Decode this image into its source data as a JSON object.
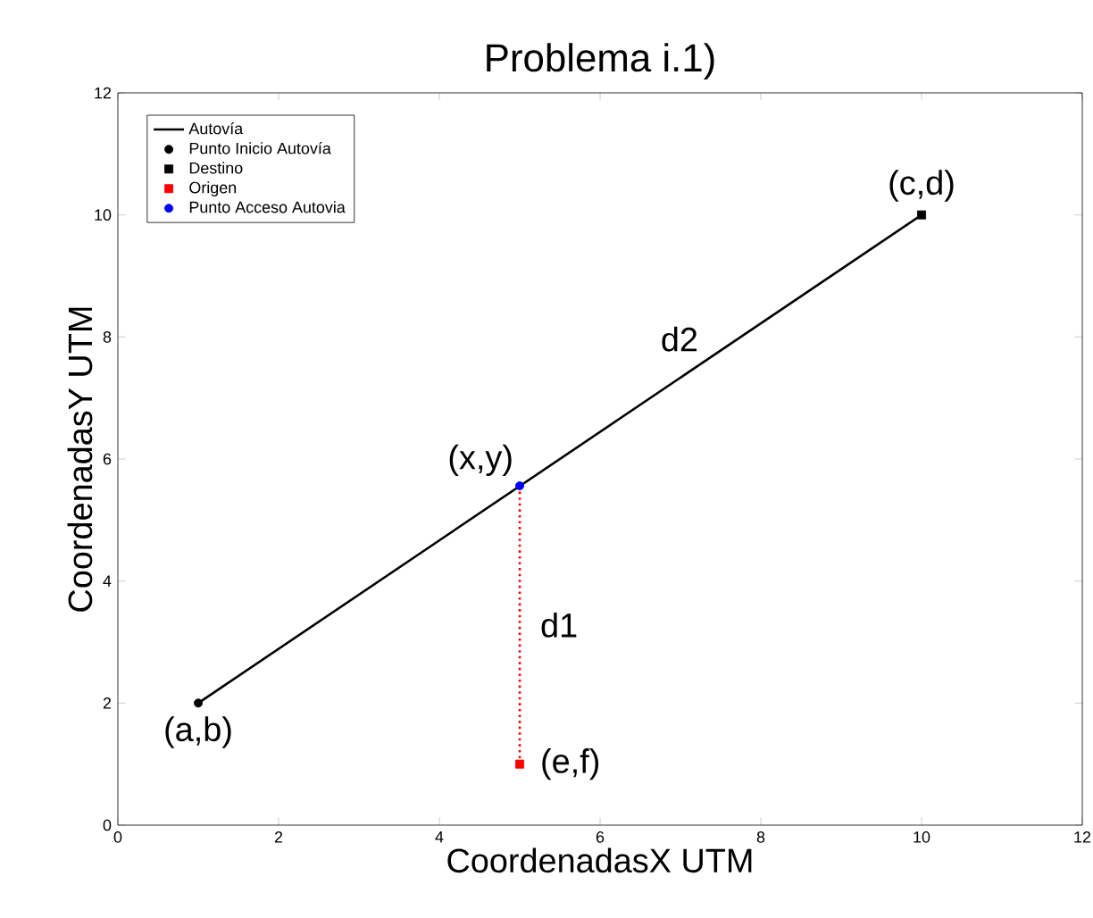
{
  "chart_data": {
    "type": "line",
    "title": "Problema i.1)",
    "xlabel": "CoordenadasX UTM",
    "ylabel": "CoordenadasY UTM",
    "xlim": [
      0,
      12
    ],
    "ylim": [
      0,
      12
    ],
    "xticks": [
      0,
      2,
      4,
      6,
      8,
      10,
      12
    ],
    "yticks": [
      0,
      2,
      4,
      6,
      8,
      10,
      12
    ],
    "grid": false,
    "legend": "top left",
    "series": [
      {
        "color": "#ff0000",
        "line_style": "dotted",
        "marker": "none",
        "x": [
          5,
          5
        ],
        "values": [
          1,
          5.56
        ]
      },
      {
        "name": "Autovía",
        "color": "#000000",
        "line_style": "solid",
        "marker": "none",
        "x": [
          1,
          10
        ],
        "values": [
          2,
          10
        ]
      },
      {
        "name": "Punto Inicio Autovía",
        "type": "scatter",
        "color": "#000000",
        "marker": "circle",
        "x": [
          1
        ],
        "values": [
          2
        ]
      },
      {
        "name": "Destino",
        "type": "scatter",
        "color": "#000000",
        "marker": "square",
        "x": [
          10
        ],
        "values": [
          10
        ]
      },
      {
        "name": "Origen",
        "type": "scatter",
        "color": "#ff0000",
        "marker": "square",
        "x": [
          5
        ],
        "values": [
          1
        ]
      },
      {
        "name": "Punto Acceso Autovia",
        "type": "scatter",
        "color": "#0000ff",
        "marker": "circle",
        "x": [
          5
        ],
        "values": [
          5.56
        ]
      }
    ],
    "annotations": [
      {
        "text": "(a,b)",
        "x": 1,
        "y": 2
      },
      {
        "text": "(c,d)",
        "x": 10,
        "y": 10
      },
      {
        "text": "(x,y)",
        "x": 5,
        "y": 5.56
      },
      {
        "text": "(e,f)",
        "x": 5,
        "y": 1
      },
      {
        "text": "d1",
        "x": 5,
        "y": 3.28
      },
      {
        "text": "d2",
        "x": 7.3,
        "y": 7.6
      }
    ]
  }
}
